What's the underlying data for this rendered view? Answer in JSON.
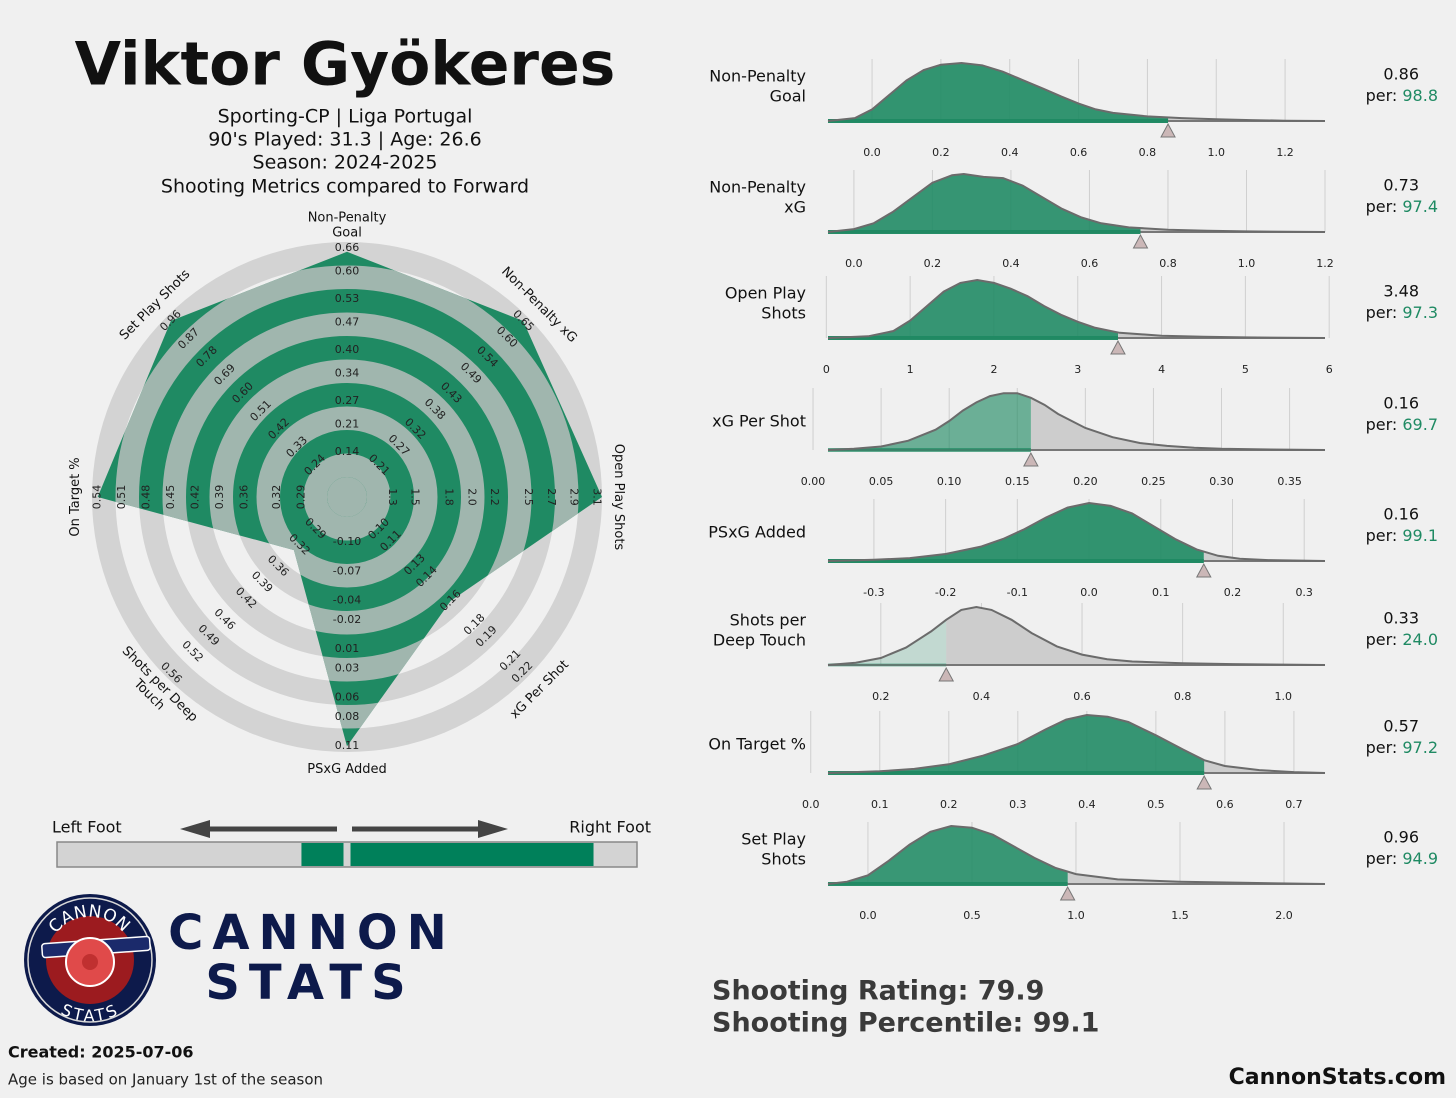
{
  "header": {
    "title": "Viktor Gyökeres",
    "lines": [
      "Sporting-CP | Liga Portugal",
      "90's Played: 31.3 | Age: 26.6",
      "Season: 2024-2025",
      "Shooting Metrics compared to Forward"
    ]
  },
  "percentile_prefix": "per:",
  "chart_data": [
    {
      "type": "radar",
      "color": "#1f8a63",
      "axes": [
        {
          "label": [
            "Non-Penalty",
            "Goal"
          ],
          "lim": [
            0.076,
            0.675
          ],
          "ticks": [
            0.14,
            0.21,
            0.27,
            0.34,
            {
              "value": 0.4,
              "label": "0.40"
            },
            0.47,
            0.53,
            {
              "value": 0.6,
              "label": "0.60"
            },
            0.66
          ]
        },
        {
          "label": [
            "Non-Penalty xG"
          ],
          "lim": [
            0.156,
            0.663
          ],
          "ticks": [
            0.21,
            0.27,
            0.32,
            0.38,
            0.43,
            0.49,
            0.54,
            {
              "value": 0.6,
              "label": "0.60"
            },
            0.65
          ]
        },
        {
          "label": [
            "Open Play Shots"
          ],
          "lim": [
            1.08,
            3.15
          ],
          "ticks": [
            1.3,
            1.5,
            1.8,
            {
              "value": 2,
              "label": "2.0"
            },
            2.2,
            2.5,
            2.7,
            2.9,
            3.1
          ]
        },
        {
          "label": [
            "xG Per Shot"
          ],
          "lim": [
            0.085,
            0.224
          ],
          "ticks": [
            {
              "value": 0.1,
              "label": "0.10"
            },
            0.11,
            0.13,
            0.14,
            0.16,
            0.18,
            0.19,
            0.21,
            0.22
          ]
        },
        {
          "label": [
            "PSxG Added"
          ],
          "lim": [
            -0.126,
            0.116
          ],
          "ticks": [
            {
              "value": -0.1,
              "label": "-0.10"
            },
            -0.07,
            -0.04,
            -0.02,
            0.01,
            0.03,
            0.06,
            0.08,
            0.11
          ]
        },
        {
          "label": [
            "Shots per Deep",
            "Touch"
          ],
          "lim": [
            0.257,
            0.568
          ],
          "ticks": [
            0.29,
            0.32,
            0.36,
            0.39,
            0.42,
            0.46,
            0.49,
            0.52,
            0.56
          ]
        },
        {
          "label": [
            "On Target %"
          ],
          "lim": [
            0.259,
            0.547
          ],
          "ticks": [
            0.29,
            0.32,
            0.36,
            0.39,
            0.42,
            0.45,
            0.48,
            0.51,
            0.54
          ]
        },
        {
          "label": [
            "Set Play Shots"
          ],
          "lim": [
            0.152,
            0.981
          ],
          "ticks": [
            0.24,
            0.33,
            0.42,
            0.51,
            {
              "value": 0.6,
              "label": "0.60"
            },
            0.69,
            0.78,
            0.87,
            0.96
          ]
        }
      ],
      "values": [
        0.65,
        0.65,
        3.15,
        0.16,
        0.11,
        0.33,
        0.54,
        0.96
      ]
    },
    {
      "type": "foot",
      "labels": [
        "Left Foot",
        "Right Foot"
      ],
      "values": [
        14.5,
        83.8
      ],
      "xlim": [
        0,
        100
      ],
      "color": "#00805a"
    },
    {
      "type": "density",
      "label": [
        "Non-Penalty",
        "Goal"
      ],
      "value": 0.86,
      "percentile": 98.8,
      "color": "#1f8a63",
      "xlim": [
        -0.128,
        1.316
      ],
      "xticks": [
        {
          "value": 0,
          "label": "0.0"
        },
        0.2,
        0.4,
        0.6,
        0.8,
        {
          "value": 1,
          "label": "1.0"
        },
        1.2
      ],
      "density": {
        "x": [
          -0.128,
          -0.05,
          0,
          0.05,
          0.1,
          0.15,
          0.2,
          0.26,
          0.32,
          0.38,
          0.44,
          0.5,
          0.55,
          0.6,
          0.65,
          0.7,
          0.8,
          0.9,
          1.0,
          1.1,
          1.2,
          1.316
        ],
        "y": [
          0,
          0.05,
          0.2,
          0.45,
          0.7,
          0.88,
          0.97,
          1.0,
          0.96,
          0.85,
          0.7,
          0.55,
          0.42,
          0.3,
          0.2,
          0.14,
          0.08,
          0.05,
          0.03,
          0.015,
          0.005,
          0
        ]
      }
    },
    {
      "type": "density",
      "label": [
        "Non-Penalty",
        "xG"
      ],
      "value": 0.73,
      "percentile": 97.4,
      "color": "#1f8a63",
      "xlim": [
        -0.066,
        1.2
      ],
      "xticks": [
        {
          "value": 0,
          "label": "0.0"
        },
        0.2,
        0.4,
        0.6,
        0.8,
        {
          "value": 1,
          "label": "1.0"
        },
        1.2
      ],
      "density": {
        "x": [
          -0.066,
          0,
          0.05,
          0.1,
          0.15,
          0.2,
          0.25,
          0.28,
          0.33,
          0.38,
          0.43,
          0.48,
          0.53,
          0.58,
          0.63,
          0.7,
          0.8,
          0.9,
          1.0,
          1.2
        ],
        "y": [
          0,
          0.05,
          0.15,
          0.35,
          0.6,
          0.85,
          0.98,
          1.0,
          0.95,
          0.93,
          0.8,
          0.6,
          0.4,
          0.25,
          0.15,
          0.08,
          0.04,
          0.02,
          0.01,
          0
        ]
      }
    },
    {
      "type": "density",
      "label": [
        "Open Play",
        "Shots"
      ],
      "value": 3.48,
      "percentile": 97.3,
      "color": "#1f8a63",
      "xlim": [
        0.02,
        5.95
      ],
      "xticks": [
        0,
        1,
        2,
        3,
        4,
        5,
        6
      ],
      "density": {
        "x": [
          0.02,
          0.5,
          0.8,
          1.0,
          1.2,
          1.4,
          1.6,
          1.8,
          2.0,
          2.2,
          2.4,
          2.6,
          2.8,
          3.0,
          3.2,
          3.5,
          4.0,
          4.5,
          5.0,
          5.95
        ],
        "y": [
          0,
          0.03,
          0.12,
          0.3,
          0.55,
          0.8,
          0.95,
          1.0,
          0.95,
          0.85,
          0.72,
          0.55,
          0.4,
          0.28,
          0.18,
          0.09,
          0.04,
          0.02,
          0.01,
          0
        ]
      }
    },
    {
      "type": "density",
      "label": [
        "xG Per Shot"
      ],
      "value": 0.16,
      "percentile": 69.7,
      "color": "#1f8a63",
      "xlim": [
        0.011,
        0.376
      ],
      "xticks": [
        {
          "value": 0,
          "label": "0.00"
        },
        0.05,
        {
          "value": 0.1,
          "label": "0.10"
        },
        0.15,
        {
          "value": 0.2,
          "label": "0.20"
        },
        0.25,
        {
          "value": 0.3,
          "label": "0.30"
        },
        0.35
      ],
      "density": {
        "x": [
          0.011,
          0.03,
          0.05,
          0.07,
          0.09,
          0.1,
          0.11,
          0.12,
          0.13,
          0.14,
          0.15,
          0.16,
          0.17,
          0.18,
          0.2,
          0.22,
          0.24,
          0.26,
          0.28,
          0.3,
          0.33,
          0.376
        ],
        "y": [
          0,
          0.02,
          0.06,
          0.16,
          0.35,
          0.5,
          0.68,
          0.82,
          0.93,
          0.98,
          0.98,
          0.9,
          0.78,
          0.62,
          0.38,
          0.22,
          0.12,
          0.07,
          0.04,
          0.02,
          0.01,
          0
        ]
      }
    },
    {
      "type": "density",
      "label": [
        "PSxG Added"
      ],
      "value": 0.16,
      "percentile": 99.1,
      "color": "#1f8a63",
      "xlim": [
        -0.364,
        0.329
      ],
      "xticks": [
        -0.3,
        -0.2,
        -0.1,
        {
          "value": 0,
          "label": "0.0"
        },
        0.1,
        0.2,
        0.3
      ],
      "density": {
        "x": [
          -0.364,
          -0.3,
          -0.25,
          -0.2,
          -0.15,
          -0.12,
          -0.09,
          -0.06,
          -0.03,
          0,
          0.03,
          0.06,
          0.09,
          0.12,
          0.15,
          0.18,
          0.21,
          0.25,
          0.329
        ],
        "y": [
          0,
          0.02,
          0.05,
          0.12,
          0.25,
          0.38,
          0.55,
          0.75,
          0.92,
          1.0,
          0.95,
          0.82,
          0.6,
          0.38,
          0.2,
          0.09,
          0.04,
          0.015,
          0
        ]
      }
    },
    {
      "type": "density",
      "label": [
        "Shots per",
        "Deep Touch"
      ],
      "value": 0.33,
      "percentile": 24,
      "percentile_label": "24.0",
      "color": "#1f8a63",
      "xlim": [
        0.095,
        1.083
      ],
      "xticks": [
        0.2,
        0.4,
        0.6,
        0.8,
        {
          "value": 1,
          "label": "1.0"
        }
      ],
      "density": {
        "x": [
          0.095,
          0.15,
          0.2,
          0.25,
          0.3,
          0.33,
          0.36,
          0.39,
          0.42,
          0.46,
          0.5,
          0.55,
          0.6,
          0.65,
          0.7,
          0.8,
          0.9,
          1.083
        ],
        "y": [
          0,
          0.04,
          0.12,
          0.3,
          0.58,
          0.78,
          0.95,
          1.0,
          0.95,
          0.78,
          0.55,
          0.32,
          0.18,
          0.1,
          0.06,
          0.03,
          0.015,
          0
        ]
      }
    },
    {
      "type": "density",
      "label": [
        "On Target %"
      ],
      "value": 0.57,
      "percentile": 97.2,
      "color": "#1f8a63",
      "xlim": [
        0.025,
        0.745
      ],
      "xticks": [
        {
          "value": 0,
          "label": "0.0"
        },
        0.1,
        0.2,
        0.3,
        0.4,
        0.5,
        0.6,
        0.7
      ],
      "density": {
        "x": [
          0.025,
          0.1,
          0.15,
          0.2,
          0.25,
          0.3,
          0.34,
          0.37,
          0.4,
          0.43,
          0.46,
          0.5,
          0.54,
          0.57,
          0.6,
          0.65,
          0.7,
          0.745
        ],
        "y": [
          0,
          0.03,
          0.07,
          0.15,
          0.3,
          0.5,
          0.75,
          0.92,
          1.0,
          0.97,
          0.88,
          0.65,
          0.4,
          0.22,
          0.12,
          0.05,
          0.015,
          0
        ]
      }
    },
    {
      "type": "density",
      "label": [
        "Set Play",
        "Shots"
      ],
      "value": 0.96,
      "percentile": 94.9,
      "color": "#1f8a63",
      "xlim": [
        -0.192,
        2.197
      ],
      "xticks": [
        {
          "value": 0,
          "label": "0.0"
        },
        0.5,
        {
          "value": 1,
          "label": "1.0"
        },
        1.5,
        {
          "value": 2,
          "label": "2.0"
        }
      ],
      "density": {
        "x": [
          -0.192,
          -0.1,
          0,
          0.1,
          0.2,
          0.3,
          0.4,
          0.5,
          0.6,
          0.7,
          0.8,
          0.9,
          1.0,
          1.2,
          1.5,
          1.8,
          2.197
        ],
        "y": [
          0,
          0.04,
          0.15,
          0.4,
          0.68,
          0.9,
          1.0,
          0.97,
          0.85,
          0.65,
          0.45,
          0.28,
          0.17,
          0.08,
          0.04,
          0.02,
          0
        ]
      }
    }
  ],
  "summary": [
    "Shooting Rating: 79.9",
    "Shooting Percentile: 99.1"
  ],
  "logo": {
    "ring_top": "CANNON",
    "ring_bottom": "STATS",
    "name": [
      "CANNON",
      "STATS"
    ]
  },
  "footer": {
    "created": "Created: 2025-07-06",
    "note": "Age is based on January 1st of the season",
    "site": "CannonStats.com"
  }
}
